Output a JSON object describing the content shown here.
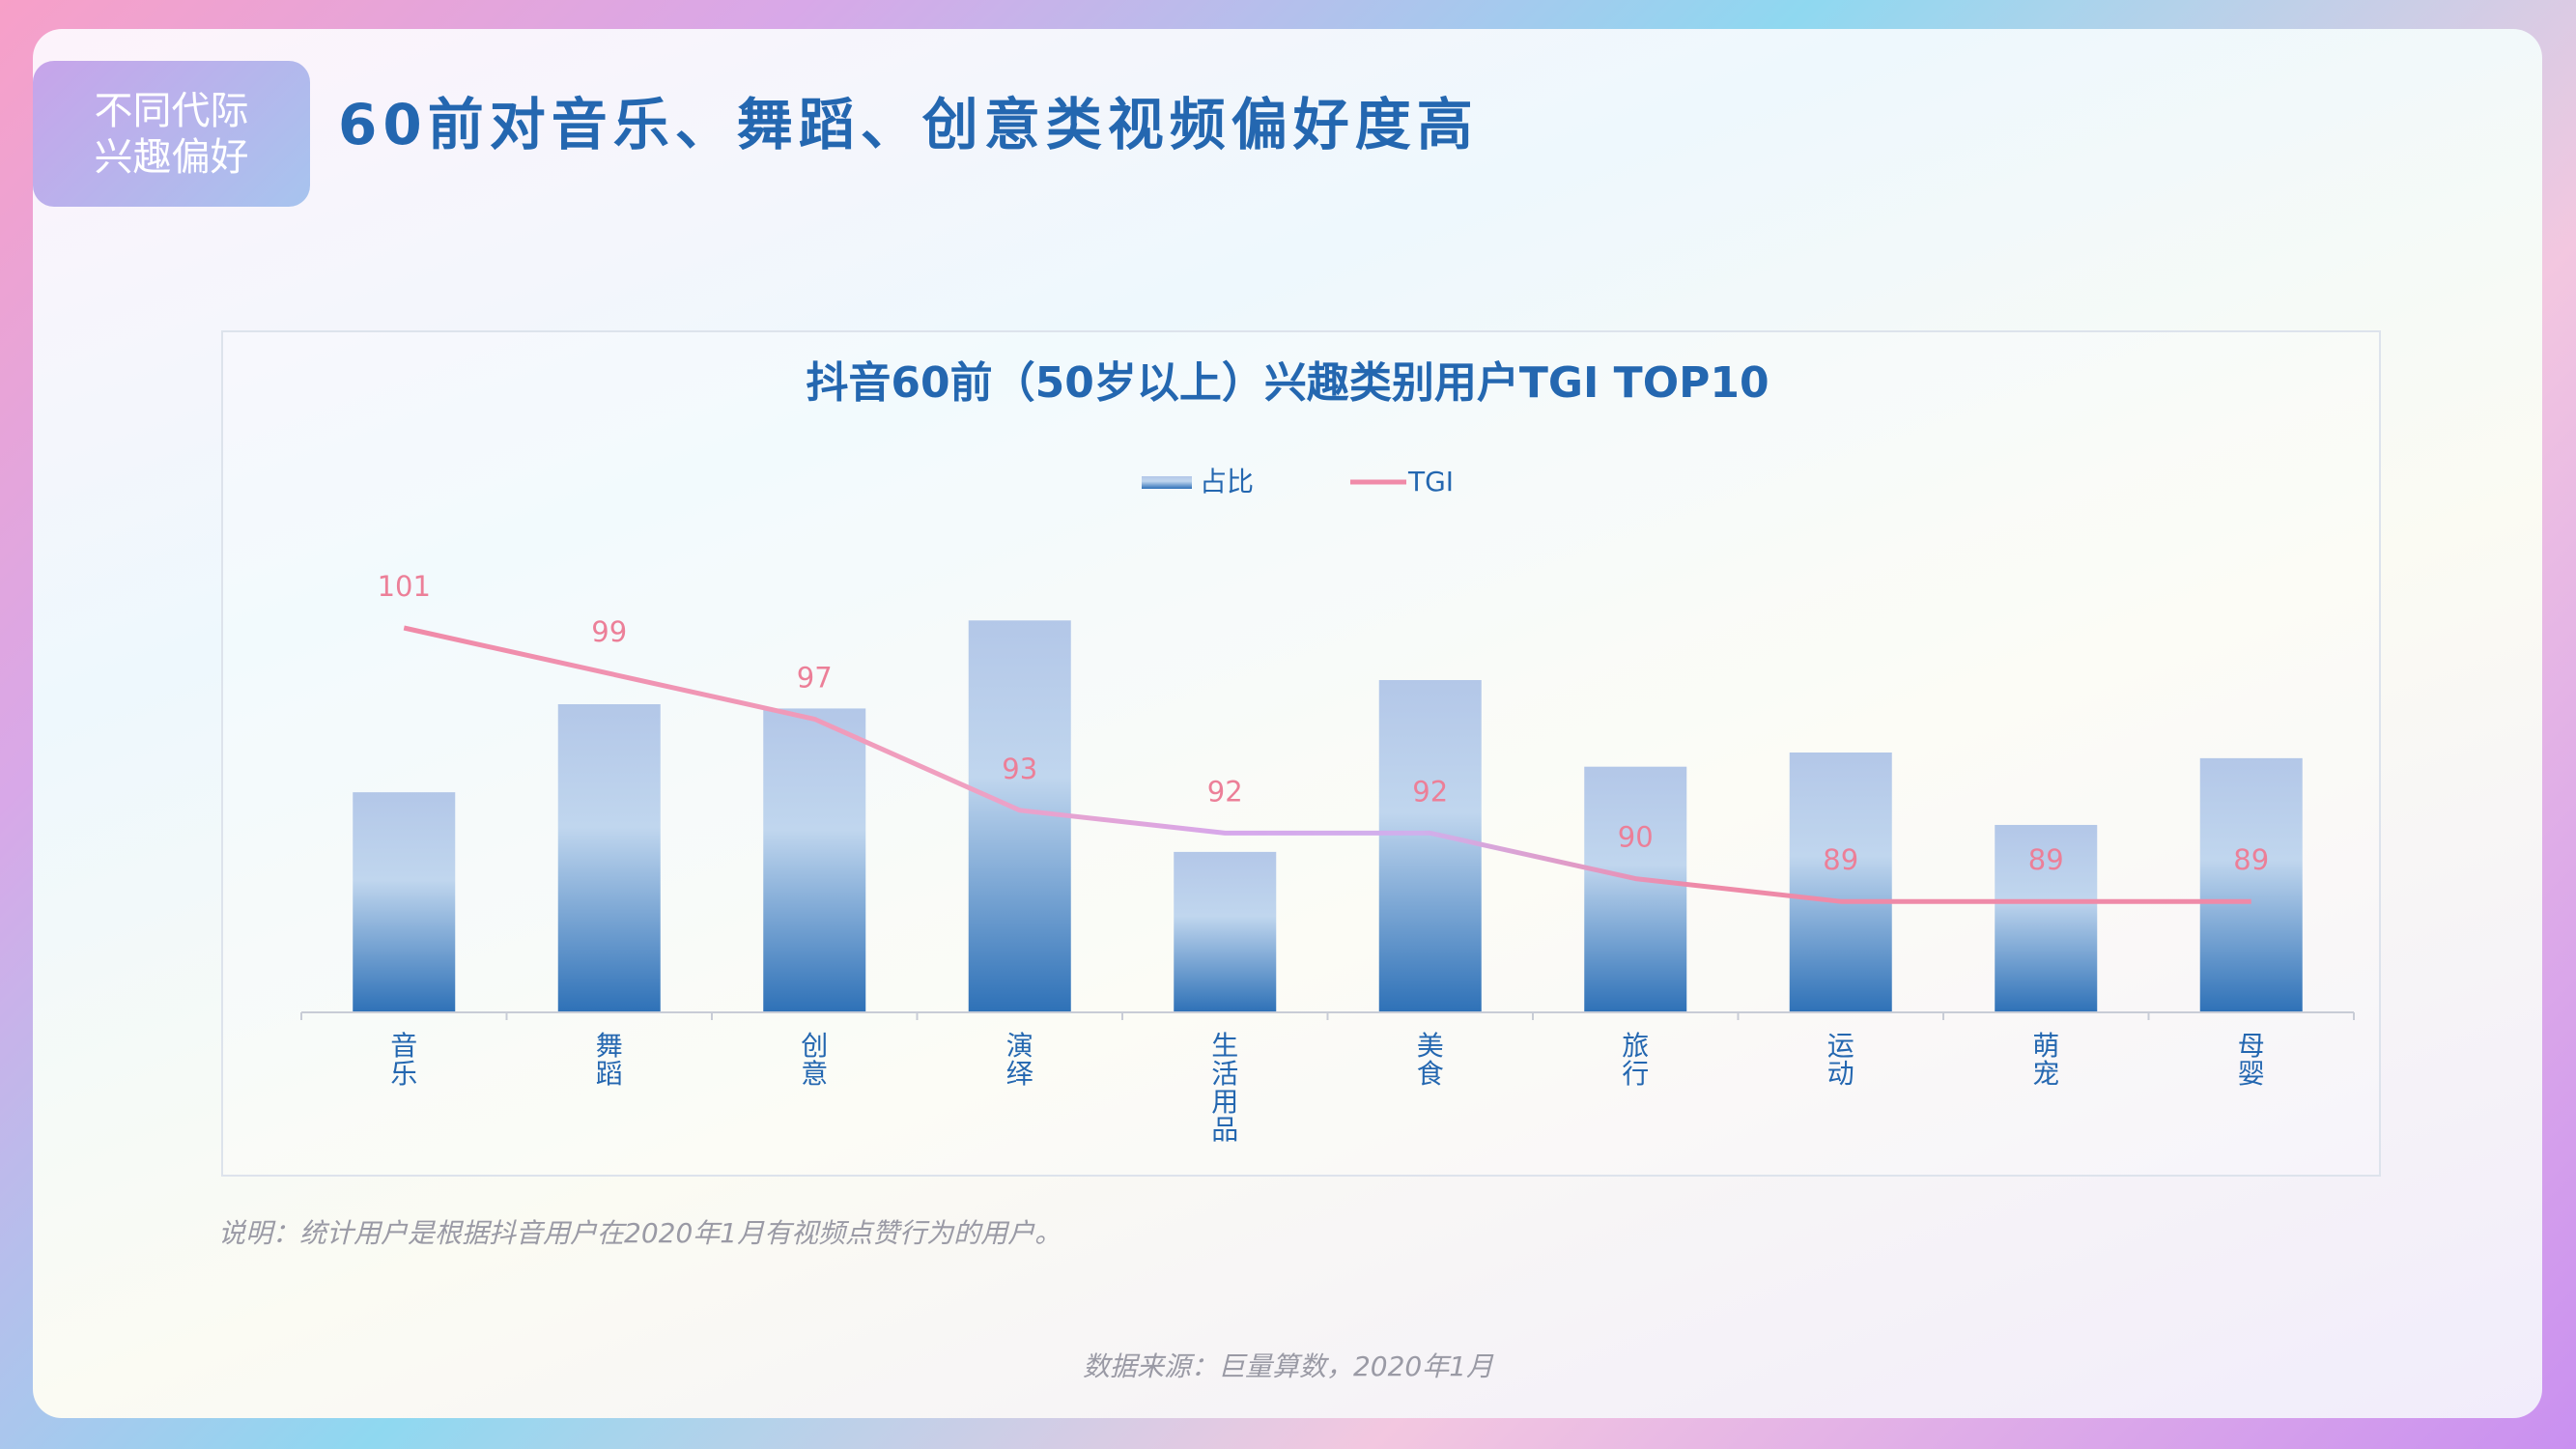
{
  "header": {
    "tag_line1": "不同代际",
    "tag_line2": "兴趣偏好",
    "title": "60前对音乐、舞蹈、创意类视频偏好度高"
  },
  "note": "说明：统计用户是根据抖音用户在2020年1月有视频点赞行为的用户。",
  "source": "数据来源：巨量算数，2020年1月",
  "colors": {
    "bar_top": "#b8cde9",
    "bar_bottom": "#2f72b8",
    "line": "#f08aa8",
    "line_mid": "#c8a8ec",
    "title": "#2467b0"
  },
  "chart_data": {
    "type": "bar",
    "title": "抖音60前（50岁以上）兴趣类别用户TGI TOP10",
    "categories": [
      "音乐",
      "舞蹈",
      "创意",
      "演绎",
      "生活用品",
      "美食",
      "旅行",
      "运动",
      "萌宠",
      "母婴"
    ],
    "series": [
      {
        "name": "占比",
        "type": "bar",
        "values": [
          1.55,
          2.17,
          2.14,
          2.76,
          1.13,
          2.34,
          1.73,
          1.83,
          1.32,
          1.79
        ]
      },
      {
        "name": "TGI",
        "type": "line",
        "values": [
          101,
          99,
          97,
          93,
          92,
          92,
          90,
          89,
          89,
          89
        ]
      }
    ],
    "legend": "top-center",
    "grid": false
  }
}
